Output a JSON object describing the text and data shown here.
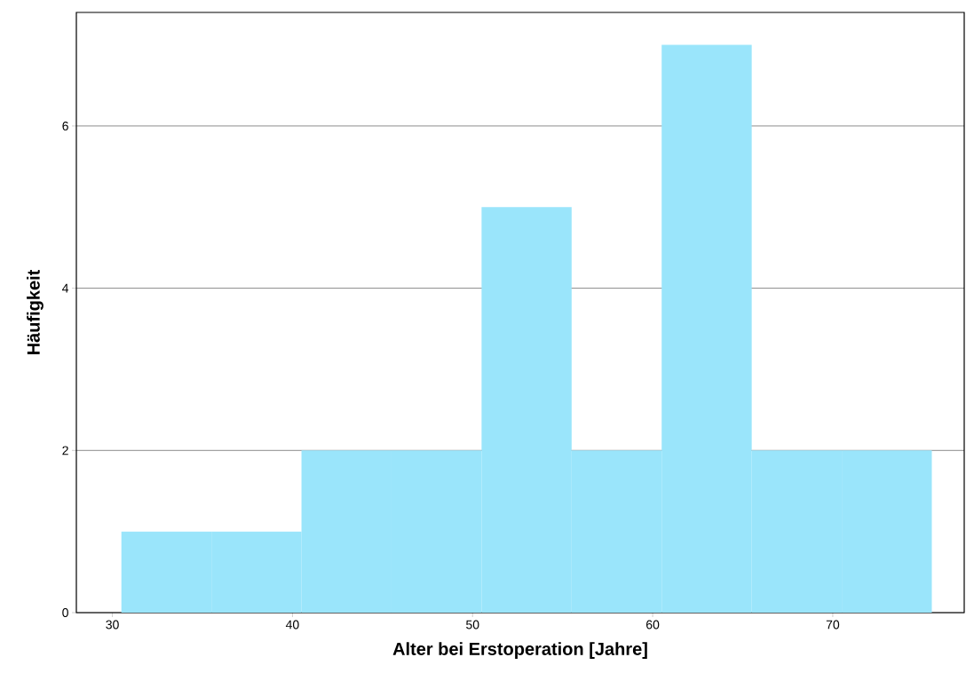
{
  "chart_data": {
    "type": "histogram",
    "xlabel": "Alter bei Erstoperation [Jahre]",
    "ylabel": "Häufigkeit",
    "bins": [
      30.5,
      35.5,
      40.5,
      45.5,
      50.5,
      55.5,
      60.5,
      65.5,
      70.5,
      75.5
    ],
    "values": [
      1,
      1,
      2,
      2,
      5,
      2,
      7,
      2,
      2
    ],
    "color": "#9ae5fb",
    "xlim": [
      28,
      77.3
    ],
    "ylim": [
      0,
      7.4
    ],
    "xticks": [
      30,
      40,
      50,
      60,
      70
    ],
    "yticks": [
      0,
      2,
      4,
      6
    ],
    "grid": "y"
  }
}
